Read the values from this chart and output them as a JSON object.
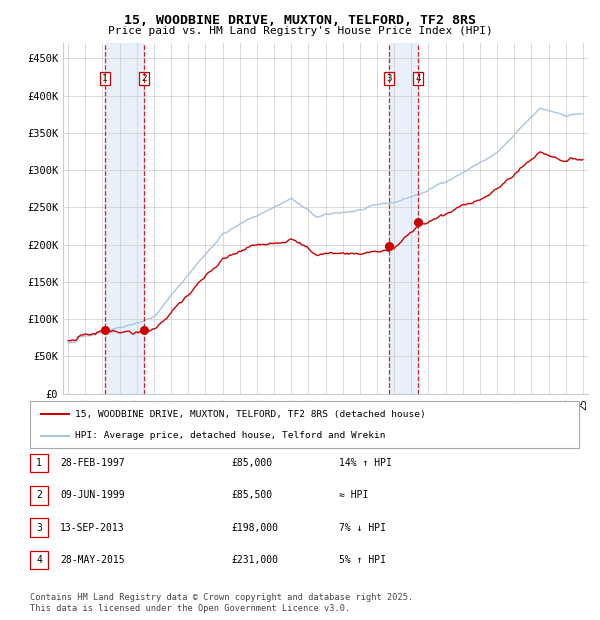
{
  "title": "15, WOODBINE DRIVE, MUXTON, TELFORD, TF2 8RS",
  "subtitle": "Price paid vs. HM Land Registry's House Price Index (HPI)",
  "ylim": [
    0,
    470000
  ],
  "yticks": [
    0,
    50000,
    100000,
    150000,
    200000,
    250000,
    300000,
    350000,
    400000,
    450000
  ],
  "ytick_labels": [
    "£0",
    "£50K",
    "£100K",
    "£150K",
    "£200K",
    "£250K",
    "£300K",
    "£350K",
    "£400K",
    "£450K"
  ],
  "background_color": "#ffffff",
  "plot_bg_color": "#ffffff",
  "grid_color": "#cccccc",
  "sale_color": "#cc0000",
  "hpi_color": "#aac4e0",
  "legend_sale": "15, WOODBINE DRIVE, MUXTON, TELFORD, TF2 8RS (detached house)",
  "legend_hpi": "HPI: Average price, detached house, Telford and Wrekin",
  "footnote": "Contains HM Land Registry data © Crown copyright and database right 2025.\nThis data is licensed under the Open Government Licence v3.0.",
  "x_start_year": 1995,
  "x_end_year": 2025,
  "trans_years": [
    1997.125,
    1999.417,
    2013.708,
    2015.417
  ],
  "trans_prices": [
    85000,
    85500,
    198000,
    231000
  ],
  "trans_nums": [
    1,
    2,
    3,
    4
  ],
  "table_entries": [
    {
      "num": 1,
      "date": "28-FEB-1997",
      "price": "£85,000",
      "note": "14% ↑ HPI"
    },
    {
      "num": 2,
      "date": "09-JUN-1999",
      "price": "£85,500",
      "note": "≈ HPI"
    },
    {
      "num": 3,
      "date": "13-SEP-2013",
      "price": "£198,000",
      "note": "7% ↓ HPI"
    },
    {
      "num": 4,
      "date": "28-MAY-2015",
      "price": "£231,000",
      "note": "5% ↑ HPI"
    }
  ]
}
